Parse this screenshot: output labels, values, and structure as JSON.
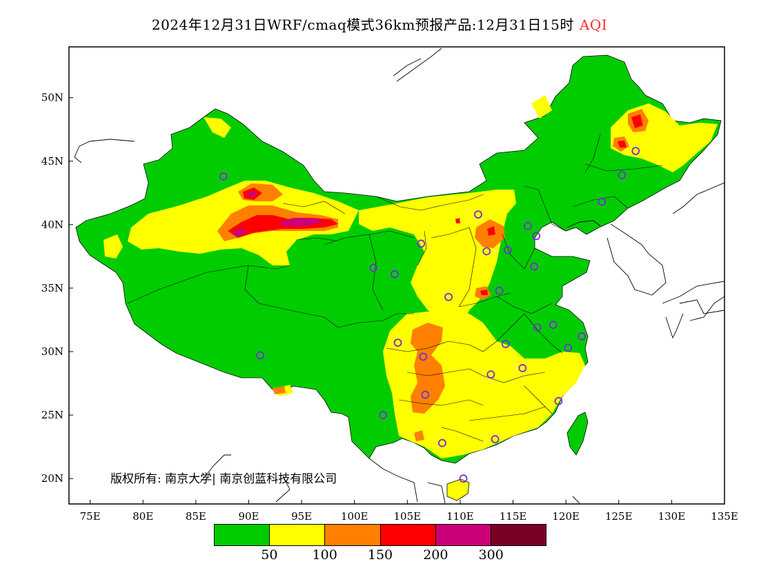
{
  "title": {
    "main": "2024年12月31日WRF/cmaq模式36km预报产品:12月31日15时",
    "pollutant": "AQI"
  },
  "copyright": "版权所有: 南京大学| 南京创蓝科技有限公司",
  "axes": {
    "lat_labels": [
      "50N",
      "45N",
      "40N",
      "35N",
      "30N",
      "25N",
      "20N"
    ],
    "lon_labels": [
      "75E",
      "80E",
      "85E",
      "90E",
      "95E",
      "100E",
      "105E",
      "110E",
      "115E",
      "120E",
      "125E",
      "130E",
      "135E"
    ]
  },
  "legend": {
    "colors": [
      "#00cc00",
      "#ffff00",
      "#ff8000",
      "#ff0000",
      "#cc0077",
      "#7a0026"
    ],
    "thresholds": [
      "50",
      "100",
      "150",
      "200",
      "300"
    ]
  },
  "colors": {
    "good": "#00cc00",
    "moderate": "#ffff00",
    "usg": "#ff8000",
    "unhealthy": "#ff0000",
    "very_unhealthy": "#cc0077",
    "station_marker": "#7a2bd6",
    "background": "#ffffff"
  },
  "stations": [
    {
      "lon": 87.6,
      "lat": 43.8
    },
    {
      "lon": 91.1,
      "lat": 29.7
    },
    {
      "lon": 101.8,
      "lat": 36.6
    },
    {
      "lon": 103.8,
      "lat": 36.1
    },
    {
      "lon": 106.3,
      "lat": 38.5
    },
    {
      "lon": 111.7,
      "lat": 40.8
    },
    {
      "lon": 112.5,
      "lat": 37.9
    },
    {
      "lon": 114.5,
      "lat": 38.0
    },
    {
      "lon": 116.4,
      "lat": 39.9
    },
    {
      "lon": 117.2,
      "lat": 39.1
    },
    {
      "lon": 117.0,
      "lat": 36.7
    },
    {
      "lon": 113.7,
      "lat": 34.8
    },
    {
      "lon": 108.9,
      "lat": 34.3
    },
    {
      "lon": 104.1,
      "lat": 30.7
    },
    {
      "lon": 106.5,
      "lat": 29.6
    },
    {
      "lon": 106.7,
      "lat": 26.6
    },
    {
      "lon": 102.7,
      "lat": 25.0
    },
    {
      "lon": 108.3,
      "lat": 22.8
    },
    {
      "lon": 113.3,
      "lat": 23.1
    },
    {
      "lon": 110.3,
      "lat": 20.0
    },
    {
      "lon": 114.3,
      "lat": 30.6
    },
    {
      "lon": 112.9,
      "lat": 28.2
    },
    {
      "lon": 115.9,
      "lat": 28.7
    },
    {
      "lon": 119.3,
      "lat": 26.1
    },
    {
      "lon": 120.2,
      "lat": 30.3
    },
    {
      "lon": 118.8,
      "lat": 32.1
    },
    {
      "lon": 117.3,
      "lat": 31.9
    },
    {
      "lon": 121.5,
      "lat": 31.2
    },
    {
      "lon": 123.4,
      "lat": 41.8
    },
    {
      "lon": 125.3,
      "lat": 43.9
    },
    {
      "lon": 126.6,
      "lat": 45.8
    }
  ]
}
